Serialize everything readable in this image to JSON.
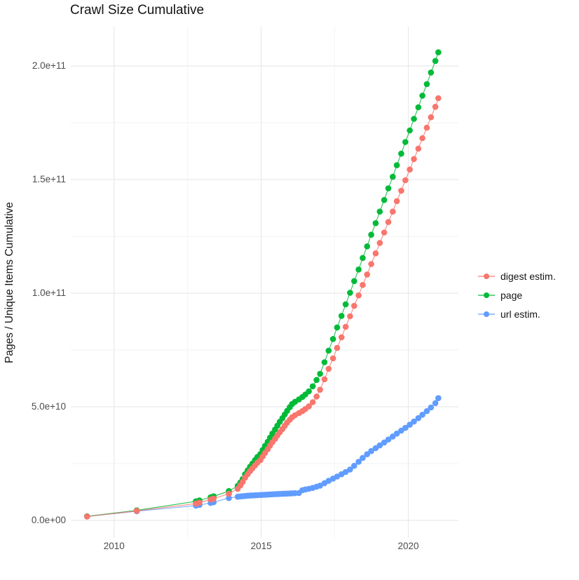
{
  "chart_data": {
    "type": "scatter",
    "title": "Crawl Size Cumulative",
    "xlabel": "",
    "ylabel": "Pages / Unique Items Cumulative",
    "x_unit": "year (decimal)",
    "y_unit": "pages / unique items, billions (1e9)",
    "xlim": [
      2008.55,
      2021.7
    ],
    "ylim": [
      -10,
      216
    ],
    "grid": true,
    "legend_position": "right",
    "x_ticks": [
      {
        "v": 2010,
        "label": "2010"
      },
      {
        "v": 2015,
        "label": "2015"
      },
      {
        "v": 2020,
        "label": "2020"
      }
    ],
    "y_ticks": [
      {
        "v": 0,
        "label": "0.0e+00"
      },
      {
        "v": 50,
        "label": "5.0e+10"
      },
      {
        "v": 100,
        "label": "1.0e+11"
      },
      {
        "v": 150,
        "label": "1.5e+11"
      },
      {
        "v": 200,
        "label": "2.0e+11"
      }
    ],
    "series": [
      {
        "name": "digest estim.",
        "color": "#F8766D",
        "points": [
          [
            2009.08,
            1.7
          ],
          [
            2010.77,
            4.2
          ],
          [
            2012.78,
            7.4
          ],
          [
            2012.9,
            7.8
          ],
          [
            2013.28,
            9.2
          ],
          [
            2013.38,
            9.6
          ],
          [
            2013.9,
            11.7
          ],
          [
            2014.2,
            13.9
          ],
          [
            2014.29,
            15.4
          ],
          [
            2014.37,
            16.9
          ],
          [
            2014.45,
            18.8
          ],
          [
            2014.54,
            20.3
          ],
          [
            2014.62,
            21.7
          ],
          [
            2014.7,
            22.9
          ],
          [
            2014.79,
            24.2
          ],
          [
            2014.87,
            25.4
          ],
          [
            2014.97,
            26.5
          ],
          [
            2015.05,
            28.1
          ],
          [
            2015.13,
            29.7
          ],
          [
            2015.22,
            31.3
          ],
          [
            2015.3,
            32.9
          ],
          [
            2015.38,
            34.4
          ],
          [
            2015.47,
            35.9
          ],
          [
            2015.55,
            37.4
          ],
          [
            2015.63,
            38.8
          ],
          [
            2015.72,
            40.2
          ],
          [
            2015.8,
            41.6
          ],
          [
            2015.88,
            43.0
          ],
          [
            2015.97,
            44.3
          ],
          [
            2016.05,
            45.4
          ],
          [
            2016.15,
            46.3
          ],
          [
            2016.28,
            47.2
          ],
          [
            2016.4,
            48.1
          ],
          [
            2016.5,
            49.0
          ],
          [
            2016.62,
            50.2
          ],
          [
            2016.75,
            52.0
          ],
          [
            2016.88,
            54.5
          ],
          [
            2017.0,
            57.5
          ],
          [
            2017.15,
            62.1
          ],
          [
            2017.29,
            66.7
          ],
          [
            2017.44,
            71.3
          ],
          [
            2017.58,
            75.9
          ],
          [
            2017.73,
            80.6
          ],
          [
            2017.87,
            85.2
          ],
          [
            2018.02,
            89.8
          ],
          [
            2018.16,
            94.4
          ],
          [
            2018.31,
            99.0
          ],
          [
            2018.45,
            103.6
          ],
          [
            2018.6,
            108.2
          ],
          [
            2018.74,
            112.8
          ],
          [
            2018.89,
            117.5
          ],
          [
            2019.03,
            122.1
          ],
          [
            2019.18,
            126.7
          ],
          [
            2019.32,
            131.3
          ],
          [
            2019.47,
            135.9
          ],
          [
            2019.61,
            140.5
          ],
          [
            2019.76,
            145.1
          ],
          [
            2019.9,
            149.7
          ],
          [
            2020.05,
            154.4
          ],
          [
            2020.19,
            159.0
          ],
          [
            2020.34,
            163.6
          ],
          [
            2020.48,
            168.2
          ],
          [
            2020.63,
            172.8
          ],
          [
            2020.77,
            177.4
          ],
          [
            2020.92,
            182.0
          ],
          [
            2021.02,
            185.8
          ]
        ]
      },
      {
        "name": "page",
        "color": "#00BA38",
        "points": [
          [
            2009.08,
            1.8
          ],
          [
            2010.77,
            4.4
          ],
          [
            2012.78,
            8.4
          ],
          [
            2012.9,
            8.8
          ],
          [
            2013.28,
            10.2
          ],
          [
            2013.38,
            10.6
          ],
          [
            2013.9,
            12.9
          ],
          [
            2014.2,
            15.2
          ],
          [
            2014.29,
            16.7
          ],
          [
            2014.37,
            18.2
          ],
          [
            2014.45,
            20.3
          ],
          [
            2014.54,
            22.0
          ],
          [
            2014.62,
            23.6
          ],
          [
            2014.7,
            25.0
          ],
          [
            2014.79,
            26.5
          ],
          [
            2014.87,
            27.9
          ],
          [
            2014.97,
            29.2
          ],
          [
            2015.05,
            31.0
          ],
          [
            2015.13,
            32.8
          ],
          [
            2015.22,
            34.6
          ],
          [
            2015.3,
            36.4
          ],
          [
            2015.38,
            38.2
          ],
          [
            2015.47,
            40.0
          ],
          [
            2015.55,
            41.7
          ],
          [
            2015.63,
            43.4
          ],
          [
            2015.72,
            45.0
          ],
          [
            2015.8,
            46.6
          ],
          [
            2015.88,
            48.2
          ],
          [
            2015.97,
            49.8
          ],
          [
            2016.05,
            51.2
          ],
          [
            2016.15,
            52.2
          ],
          [
            2016.28,
            53.2
          ],
          [
            2016.4,
            54.3
          ],
          [
            2016.5,
            55.4
          ],
          [
            2016.62,
            56.8
          ],
          [
            2016.75,
            59.0
          ],
          [
            2016.88,
            61.8
          ],
          [
            2017.0,
            64.5
          ],
          [
            2017.15,
            69.6
          ],
          [
            2017.29,
            74.7
          ],
          [
            2017.44,
            79.8
          ],
          [
            2017.58,
            84.9
          ],
          [
            2017.73,
            90.0
          ],
          [
            2017.87,
            95.1
          ],
          [
            2018.02,
            100.2
          ],
          [
            2018.16,
            105.3
          ],
          [
            2018.31,
            110.4
          ],
          [
            2018.45,
            115.5
          ],
          [
            2018.6,
            120.6
          ],
          [
            2018.74,
            125.7
          ],
          [
            2018.89,
            130.8
          ],
          [
            2019.03,
            135.9
          ],
          [
            2019.18,
            141.0
          ],
          [
            2019.32,
            146.1
          ],
          [
            2019.47,
            151.2
          ],
          [
            2019.61,
            156.3
          ],
          [
            2019.76,
            161.4
          ],
          [
            2019.9,
            166.5
          ],
          [
            2020.05,
            171.6
          ],
          [
            2020.19,
            176.7
          ],
          [
            2020.34,
            181.8
          ],
          [
            2020.48,
            186.9
          ],
          [
            2020.63,
            192.0
          ],
          [
            2020.77,
            197.1
          ],
          [
            2020.92,
            202.2
          ],
          [
            2021.02,
            206.0
          ]
        ]
      },
      {
        "name": "url estim.",
        "color": "#619CFF",
        "points": [
          [
            2009.08,
            1.7
          ],
          [
            2010.77,
            4.0
          ],
          [
            2012.78,
            6.5
          ],
          [
            2012.9,
            6.8
          ],
          [
            2013.28,
            7.7
          ],
          [
            2013.38,
            8.0
          ],
          [
            2013.9,
            9.8
          ],
          [
            2014.2,
            10.4
          ],
          [
            2014.29,
            10.55
          ],
          [
            2014.37,
            10.65
          ],
          [
            2014.45,
            10.75
          ],
          [
            2014.54,
            10.85
          ],
          [
            2014.62,
            10.92
          ],
          [
            2014.7,
            11.0
          ],
          [
            2014.79,
            11.06
          ],
          [
            2014.87,
            11.12
          ],
          [
            2014.97,
            11.18
          ],
          [
            2015.05,
            11.24
          ],
          [
            2015.13,
            11.3
          ],
          [
            2015.22,
            11.36
          ],
          [
            2015.3,
            11.42
          ],
          [
            2015.38,
            11.48
          ],
          [
            2015.47,
            11.54
          ],
          [
            2015.55,
            11.6
          ],
          [
            2015.63,
            11.65
          ],
          [
            2015.72,
            11.7
          ],
          [
            2015.8,
            11.75
          ],
          [
            2015.88,
            11.8
          ],
          [
            2015.97,
            11.85
          ],
          [
            2016.05,
            11.9
          ],
          [
            2016.15,
            11.97
          ],
          [
            2016.28,
            12.05
          ],
          [
            2016.4,
            13.3
          ],
          [
            2016.5,
            13.6
          ],
          [
            2016.62,
            13.9
          ],
          [
            2016.75,
            14.3
          ],
          [
            2016.88,
            14.8
          ],
          [
            2017.0,
            15.3
          ],
          [
            2017.15,
            16.4
          ],
          [
            2017.29,
            17.4
          ],
          [
            2017.44,
            18.4
          ],
          [
            2017.58,
            19.3
          ],
          [
            2017.73,
            20.3
          ],
          [
            2017.87,
            21.3
          ],
          [
            2018.02,
            22.4
          ],
          [
            2018.16,
            24.0
          ],
          [
            2018.31,
            25.8
          ],
          [
            2018.45,
            27.5
          ],
          [
            2018.6,
            29.1
          ],
          [
            2018.74,
            30.5
          ],
          [
            2018.89,
            31.8
          ],
          [
            2019.03,
            33.0
          ],
          [
            2019.18,
            34.3
          ],
          [
            2019.32,
            35.6
          ],
          [
            2019.47,
            36.9
          ],
          [
            2019.61,
            38.2
          ],
          [
            2019.76,
            39.5
          ],
          [
            2019.9,
            40.7
          ],
          [
            2020.05,
            42.1
          ],
          [
            2020.19,
            43.5
          ],
          [
            2020.34,
            45.0
          ],
          [
            2020.48,
            46.5
          ],
          [
            2020.63,
            48.1
          ],
          [
            2020.77,
            49.7
          ],
          [
            2020.92,
            51.6
          ],
          [
            2021.02,
            53.8
          ]
        ]
      }
    ],
    "style": {
      "grid_major_color": "#E9E9E9",
      "grid_minor_color": "#F2F2F2",
      "tick_text_color": "#4d4d4d",
      "text_color": "#141414",
      "background": "#ffffff",
      "point_radius": 4.3
    }
  }
}
